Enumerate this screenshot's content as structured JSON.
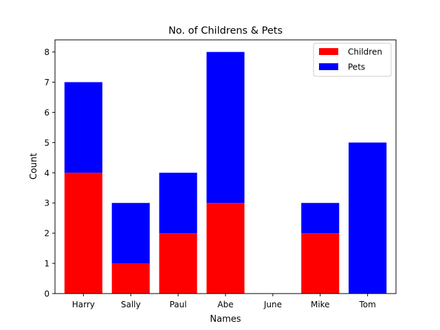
{
  "chart_data": {
    "type": "bar",
    "stacked": true,
    "title": "No. of Childrens & Pets",
    "xlabel": "Names",
    "ylabel": "Count",
    "categories": [
      "Harry",
      "Sally",
      "Paul",
      "Abe",
      "June",
      "Mike",
      "Tom"
    ],
    "series": [
      {
        "name": "Children",
        "color": "#ff0000",
        "values": [
          4,
          1,
          2,
          3,
          0,
          2,
          0
        ]
      },
      {
        "name": "Pets",
        "color": "#0000ff",
        "values": [
          3,
          2,
          2,
          5,
          0,
          1,
          5
        ]
      }
    ],
    "ylim": [
      0,
      8.4
    ],
    "yticks": [
      0,
      1,
      2,
      3,
      4,
      5,
      6,
      7,
      8
    ],
    "grid": false,
    "legend_position": "top-right"
  }
}
